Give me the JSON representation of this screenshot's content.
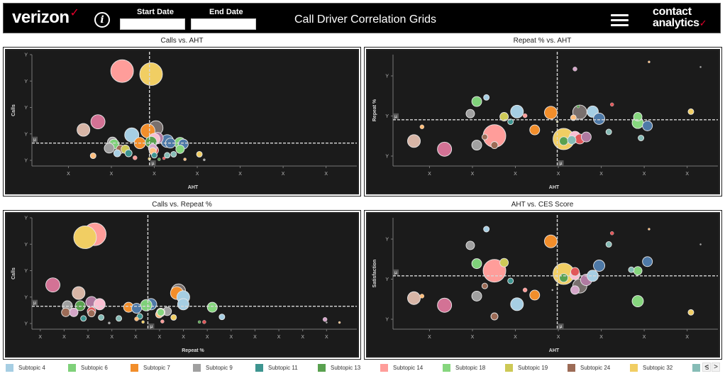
{
  "header": {
    "brand": "verizon",
    "brand_mark": "✓",
    "info_icon": "info-icon",
    "start_date_label": "Start Date",
    "start_date_value": "",
    "end_date_label": "End Date",
    "end_date_value": "",
    "title": "Call Driver Correlation Grids",
    "menu_icon": "hamburger-menu-icon",
    "logo_line1": "contact",
    "logo_line2": "analytics",
    "logo_mark": "✓"
  },
  "legend": {
    "items": [
      {
        "label": "Subtopic 4",
        "color": "#a6cee3"
      },
      {
        "label": "Subtopic 6",
        "color": "#7fd17a"
      },
      {
        "label": "Subtopic 7",
        "color": "#f28e2b"
      },
      {
        "label": "Subtopic 9",
        "color": "#a0a0a0"
      },
      {
        "label": "Subtopic 11",
        "color": "#3e9590"
      },
      {
        "label": "Subtopic 13",
        "color": "#59a14f"
      },
      {
        "label": "Subtopic 14",
        "color": "#ff9d9a"
      },
      {
        "label": "Subtopic 18",
        "color": "#86d67e"
      },
      {
        "label": "Subtopic 19",
        "color": "#cdc956"
      },
      {
        "label": "Subtopic 24",
        "color": "#9c6b56"
      },
      {
        "label": "Subtopic 32",
        "color": "#f1ce63"
      },
      {
        "label": "S",
        "color": "#86bcb6"
      }
    ],
    "prev_label": "<",
    "next_label": ">"
  },
  "palette": {
    "lblue": "#a6cee3",
    "green": "#7fd17a",
    "orange": "#f28e2b",
    "gray": "#a0a0a0",
    "teal": "#3e9590",
    "dgreen": "#59a14f",
    "pink": "#ff9d9a",
    "lgreen": "#86d67e",
    "olive": "#cdc956",
    "brown": "#9c6b56",
    "yellow": "#f1ce63",
    "lteal": "#86bcb6",
    "magenta": "#d37295",
    "tan": "#d7b5a6",
    "dgray": "#79706e",
    "blue": "#4e79a7",
    "lpink": "#fabfd2",
    "purple": "#b07aa1",
    "red": "#e15759",
    "peach": "#ffbe7d",
    "lilac": "#d4a6c8"
  },
  "chart_data": [
    {
      "type": "scatter",
      "title": "Calls vs. AHT",
      "xlabel": "AHT",
      "ylabel": "Calls",
      "x_tick_labels": [
        "X",
        "X",
        "X",
        "X",
        "X",
        "X",
        "X"
      ],
      "y_tick_labels": [
        "Y",
        "Y",
        "Y",
        "Y",
        "Y"
      ],
      "xlim": [
        0,
        1
      ],
      "ylim": [
        0,
        1
      ],
      "mean_x": 0.365,
      "mean_y": 0.17,
      "mean_marker": "μ",
      "points": [
        {
          "x": 0.28,
          "y": 0.88,
          "s": 16,
          "c": "pink"
        },
        {
          "x": 0.37,
          "y": 0.85,
          "s": 16,
          "c": "yellow"
        },
        {
          "x": 0.205,
          "y": 0.38,
          "s": 10,
          "c": "magenta"
        },
        {
          "x": 0.16,
          "y": 0.3,
          "s": 9,
          "c": "tan"
        },
        {
          "x": 0.385,
          "y": 0.32,
          "s": 10,
          "c": "dgray"
        },
        {
          "x": 0.36,
          "y": 0.29,
          "s": 10,
          "c": "orange"
        },
        {
          "x": 0.31,
          "y": 0.25,
          "s": 10,
          "c": "lblue"
        },
        {
          "x": 0.39,
          "y": 0.22,
          "s": 8,
          "c": "purple"
        },
        {
          "x": 0.38,
          "y": 0.21,
          "s": 8,
          "c": "lpink"
        },
        {
          "x": 0.42,
          "y": 0.19,
          "s": 9,
          "c": "blue"
        },
        {
          "x": 0.43,
          "y": 0.17,
          "s": 7,
          "c": "blue"
        },
        {
          "x": 0.37,
          "y": 0.18,
          "s": 8,
          "c": "dgreen"
        },
        {
          "x": 0.335,
          "y": 0.17,
          "s": 8,
          "c": "orange"
        },
        {
          "x": 0.25,
          "y": 0.18,
          "s": 7,
          "c": "gray"
        },
        {
          "x": 0.255,
          "y": 0.16,
          "s": 7,
          "c": "green"
        },
        {
          "x": 0.24,
          "y": 0.12,
          "s": 7,
          "c": "gray"
        },
        {
          "x": 0.275,
          "y": 0.11,
          "s": 6,
          "c": "brown"
        },
        {
          "x": 0.29,
          "y": 0.11,
          "s": 6,
          "c": "olive"
        },
        {
          "x": 0.265,
          "y": 0.07,
          "s": 5,
          "c": "lblue"
        },
        {
          "x": 0.3,
          "y": 0.07,
          "s": 5,
          "c": "teal"
        },
        {
          "x": 0.38,
          "y": 0.1,
          "s": 6,
          "c": "red"
        },
        {
          "x": 0.375,
          "y": 0.12,
          "s": 6,
          "c": "lilac"
        },
        {
          "x": 0.375,
          "y": 0.09,
          "s": 5,
          "c": "peach"
        },
        {
          "x": 0.38,
          "y": 0.05,
          "s": 4,
          "c": "teal"
        },
        {
          "x": 0.46,
          "y": 0.17,
          "s": 8,
          "c": "green"
        },
        {
          "x": 0.47,
          "y": 0.16,
          "s": 7,
          "c": "blue"
        },
        {
          "x": 0.46,
          "y": 0.11,
          "s": 6,
          "c": "lgreen"
        },
        {
          "x": 0.44,
          "y": 0.06,
          "s": 4,
          "c": "lteal"
        },
        {
          "x": 0.42,
          "y": 0.05,
          "s": 4,
          "c": "lteal"
        },
        {
          "x": 0.19,
          "y": 0.045,
          "s": 4,
          "c": "peach"
        },
        {
          "x": 0.32,
          "y": 0.025,
          "s": 3,
          "c": "pink"
        },
        {
          "x": 0.52,
          "y": 0.06,
          "s": 4,
          "c": "yellow"
        },
        {
          "x": 0.41,
          "y": 0.02,
          "s": 2,
          "c": "red"
        },
        {
          "x": 0.365,
          "y": 0.015,
          "s": 2,
          "c": "yellow"
        },
        {
          "x": 0.395,
          "y": 0.01,
          "s": 2,
          "c": "dgreen"
        },
        {
          "x": 0.475,
          "y": 0.01,
          "s": 2,
          "c": "peach"
        },
        {
          "x": 0.535,
          "y": 0.005,
          "s": 1.5,
          "c": "gray"
        }
      ]
    },
    {
      "type": "scatter",
      "title": "Repeat % vs. AHT",
      "xlabel": "AHT",
      "ylabel": "Repeat %",
      "x_tick_labels": [
        "X",
        "X",
        "X",
        "X",
        "X",
        "X",
        "X"
      ],
      "y_tick_labels": [
        "Y",
        "Y",
        "Y"
      ],
      "xlim": [
        0,
        1
      ],
      "ylim": [
        0,
        1
      ],
      "mean_x": 0.51,
      "mean_y": 0.4,
      "mean_marker": "μ",
      "points": [
        {
          "x": 0.315,
          "y": 0.24,
          "s": 16,
          "c": "pink"
        },
        {
          "x": 0.53,
          "y": 0.21,
          "s": 15,
          "c": "yellow"
        },
        {
          "x": 0.53,
          "y": 0.19,
          "s": 6,
          "c": "dgreen"
        },
        {
          "x": 0.16,
          "y": 0.11,
          "s": 10,
          "c": "magenta"
        },
        {
          "x": 0.065,
          "y": 0.19,
          "s": 9,
          "c": "tan"
        },
        {
          "x": 0.26,
          "y": 0.15,
          "s": 7,
          "c": "gray"
        },
        {
          "x": 0.315,
          "y": 0.15,
          "s": 5,
          "c": "brown"
        },
        {
          "x": 0.285,
          "y": 0.23,
          "s": 4,
          "c": "brown"
        },
        {
          "x": 0.58,
          "y": 0.475,
          "s": 10,
          "c": "dgray"
        },
        {
          "x": 0.49,
          "y": 0.47,
          "s": 9,
          "c": "orange"
        },
        {
          "x": 0.565,
          "y": 0.23,
          "s": 8,
          "c": "lpink"
        },
        {
          "x": 0.58,
          "y": 0.21,
          "s": 7,
          "c": "red"
        },
        {
          "x": 0.6,
          "y": 0.23,
          "s": 7,
          "c": "purple"
        },
        {
          "x": 0.555,
          "y": 0.2,
          "s": 6,
          "c": "lteal"
        },
        {
          "x": 0.385,
          "y": 0.48,
          "s": 9,
          "c": "lblue"
        },
        {
          "x": 0.62,
          "y": 0.48,
          "s": 8,
          "c": "lblue"
        },
        {
          "x": 0.64,
          "y": 0.41,
          "s": 8,
          "c": "blue"
        },
        {
          "x": 0.79,
          "y": 0.34,
          "s": 7,
          "c": "blue"
        },
        {
          "x": 0.76,
          "y": 0.43,
          "s": 6,
          "c": "lgreen"
        },
        {
          "x": 0.76,
          "y": 0.37,
          "s": 8,
          "c": "lgreen"
        },
        {
          "x": 0.26,
          "y": 0.58,
          "s": 7,
          "c": "green"
        },
        {
          "x": 0.29,
          "y": 0.62,
          "s": 4,
          "c": "lblue"
        },
        {
          "x": 0.24,
          "y": 0.46,
          "s": 6,
          "c": "gray"
        },
        {
          "x": 0.345,
          "y": 0.43,
          "s": 6,
          "c": "olive"
        },
        {
          "x": 0.365,
          "y": 0.38,
          "s": 4,
          "c": "teal"
        },
        {
          "x": 0.44,
          "y": 0.3,
          "s": 7,
          "c": "orange"
        },
        {
          "x": 0.09,
          "y": 0.33,
          "s": 3,
          "c": "peach"
        },
        {
          "x": 0.41,
          "y": 0.44,
          "s": 3,
          "c": "pink"
        },
        {
          "x": 0.56,
          "y": 0.42,
          "s": 4,
          "c": "peach"
        },
        {
          "x": 0.67,
          "y": 0.28,
          "s": 4,
          "c": "lteal"
        },
        {
          "x": 0.77,
          "y": 0.22,
          "s": 4,
          "c": "lteal"
        },
        {
          "x": 0.925,
          "y": 0.48,
          "s": 4,
          "c": "yellow"
        },
        {
          "x": 0.68,
          "y": 0.55,
          "s": 2.5,
          "c": "red"
        },
        {
          "x": 0.575,
          "y": 0.53,
          "s": 2,
          "c": "dgreen"
        },
        {
          "x": 0.565,
          "y": 0.9,
          "s": 3,
          "c": "lilac"
        },
        {
          "x": 0.795,
          "y": 0.97,
          "s": 1.5,
          "c": "peach"
        },
        {
          "x": 0.955,
          "y": 0.92,
          "s": 1,
          "c": "gray"
        },
        {
          "x": 0.51,
          "y": 0.38,
          "s": 1.5,
          "c": "olive"
        },
        {
          "x": 0.495,
          "y": 0.28,
          "s": 1,
          "c": "gray"
        }
      ]
    },
    {
      "type": "scatter",
      "title": "Calls vs. Repeat %",
      "xlabel": "Repeat %",
      "ylabel": "Calls",
      "x_tick_labels": [
        "X",
        "X",
        "X",
        "X",
        "X",
        "X",
        "X",
        "X",
        "X",
        "X",
        "X",
        "X",
        "X"
      ],
      "y_tick_labels": [
        "Y",
        "Y",
        "Y",
        "Y",
        "Y"
      ],
      "xlim": [
        0,
        1
      ],
      "ylim": [
        0,
        1
      ],
      "mean_x": 0.36,
      "mean_y": 0.17,
      "mean_marker": "μ",
      "points": [
        {
          "x": 0.195,
          "y": 0.88,
          "s": 16,
          "c": "pink"
        },
        {
          "x": 0.165,
          "y": 0.85,
          "s": 16,
          "c": "yellow"
        },
        {
          "x": 0.065,
          "y": 0.38,
          "s": 10,
          "c": "magenta"
        },
        {
          "x": 0.145,
          "y": 0.3,
          "s": 9,
          "c": "tan"
        },
        {
          "x": 0.45,
          "y": 0.3,
          "s": 9,
          "c": "orange"
        },
        {
          "x": 0.455,
          "y": 0.32,
          "s": 10,
          "c": "dgray"
        },
        {
          "x": 0.47,
          "y": 0.26,
          "s": 9,
          "c": "lblue"
        },
        {
          "x": 0.47,
          "y": 0.19,
          "s": 8,
          "c": "lblue"
        },
        {
          "x": 0.185,
          "y": 0.21,
          "s": 8,
          "c": "purple"
        },
        {
          "x": 0.21,
          "y": 0.19,
          "s": 8,
          "c": "lpink"
        },
        {
          "x": 0.11,
          "y": 0.175,
          "s": 7,
          "c": "gray"
        },
        {
          "x": 0.15,
          "y": 0.175,
          "s": 7,
          "c": "dgreen"
        },
        {
          "x": 0.105,
          "y": 0.11,
          "s": 6,
          "c": "brown"
        },
        {
          "x": 0.13,
          "y": 0.11,
          "s": 6,
          "c": "lilac"
        },
        {
          "x": 0.185,
          "y": 0.12,
          "s": 6,
          "c": "red"
        },
        {
          "x": 0.185,
          "y": 0.1,
          "s": 5,
          "c": "brown"
        },
        {
          "x": 0.3,
          "y": 0.16,
          "s": 7,
          "c": "orange"
        },
        {
          "x": 0.325,
          "y": 0.15,
          "s": 7,
          "c": "blue"
        },
        {
          "x": 0.37,
          "y": 0.19,
          "s": 8,
          "c": "blue"
        },
        {
          "x": 0.355,
          "y": 0.18,
          "s": 8,
          "c": "green"
        },
        {
          "x": 0.42,
          "y": 0.12,
          "s": 6,
          "c": "gray"
        },
        {
          "x": 0.4,
          "y": 0.11,
          "s": 6,
          "c": "olive"
        },
        {
          "x": 0.395,
          "y": 0.09,
          "s": 5,
          "c": "peach"
        },
        {
          "x": 0.4,
          "y": 0.11,
          "s": 5,
          "c": "lgreen"
        },
        {
          "x": 0.56,
          "y": 0.16,
          "s": 7,
          "c": "lgreen"
        },
        {
          "x": 0.335,
          "y": 0.07,
          "s": 4,
          "c": "teal"
        },
        {
          "x": 0.325,
          "y": 0.045,
          "s": 3,
          "c": "peach"
        },
        {
          "x": 0.16,
          "y": 0.05,
          "s": 4,
          "c": "teal"
        },
        {
          "x": 0.215,
          "y": 0.06,
          "s": 4,
          "c": "lteal"
        },
        {
          "x": 0.27,
          "y": 0.05,
          "s": 4,
          "c": "lteal"
        },
        {
          "x": 0.44,
          "y": 0.06,
          "s": 4,
          "c": "yellow"
        },
        {
          "x": 0.59,
          "y": 0.065,
          "s": 4,
          "c": "lblue"
        },
        {
          "x": 0.405,
          "y": 0.02,
          "s": 2.5,
          "c": "pink"
        },
        {
          "x": 0.345,
          "y": 0.015,
          "s": 2,
          "c": "yellow"
        },
        {
          "x": 0.24,
          "y": 0.005,
          "s": 1.5,
          "c": "gray"
        },
        {
          "x": 0.52,
          "y": 0.015,
          "s": 2,
          "c": "dgreen"
        },
        {
          "x": 0.535,
          "y": 0.015,
          "s": 2.5,
          "c": "red"
        },
        {
          "x": 0.91,
          "y": 0.04,
          "s": 3,
          "c": "lilac"
        },
        {
          "x": 0.955,
          "y": 0.01,
          "s": 1.5,
          "c": "peach"
        },
        {
          "x": 0.915,
          "y": 0.01,
          "s": 1,
          "c": "gray"
        }
      ]
    },
    {
      "type": "scatter",
      "title": "AHT vs. CES Score",
      "xlabel": "AHT",
      "ylabel": "Satisfaction",
      "x_tick_labels": [
        "X",
        "X",
        "X",
        "X",
        "X",
        "X",
        "X"
      ],
      "y_tick_labels": [
        "Y",
        "Y",
        "Y"
      ],
      "xlim": [
        0,
        1
      ],
      "ylim": [
        0,
        1
      ],
      "mean_x": 0.51,
      "mean_y": 0.47,
      "mean_marker": "μ",
      "points": [
        {
          "x": 0.315,
          "y": 0.52,
          "s": 16,
          "c": "pink"
        },
        {
          "x": 0.53,
          "y": 0.49,
          "s": 15,
          "c": "yellow"
        },
        {
          "x": 0.53,
          "y": 0.45,
          "s": 6,
          "c": "dgreen"
        },
        {
          "x": 0.16,
          "y": 0.18,
          "s": 10,
          "c": "magenta"
        },
        {
          "x": 0.065,
          "y": 0.25,
          "s": 9,
          "c": "tan"
        },
        {
          "x": 0.09,
          "y": 0.27,
          "s": 3,
          "c": "peach"
        },
        {
          "x": 0.26,
          "y": 0.27,
          "s": 7,
          "c": "gray"
        },
        {
          "x": 0.385,
          "y": 0.19,
          "s": 9,
          "c": "lblue"
        },
        {
          "x": 0.315,
          "y": 0.07,
          "s": 5,
          "c": "brown"
        },
        {
          "x": 0.285,
          "y": 0.37,
          "s": 4,
          "c": "brown"
        },
        {
          "x": 0.44,
          "y": 0.28,
          "s": 7,
          "c": "orange"
        },
        {
          "x": 0.49,
          "y": 0.81,
          "s": 9,
          "c": "orange"
        },
        {
          "x": 0.24,
          "y": 0.77,
          "s": 6,
          "c": "gray"
        },
        {
          "x": 0.26,
          "y": 0.59,
          "s": 7,
          "c": "green"
        },
        {
          "x": 0.345,
          "y": 0.6,
          "s": 6,
          "c": "olive"
        },
        {
          "x": 0.29,
          "y": 0.93,
          "s": 4,
          "c": "lblue"
        },
        {
          "x": 0.365,
          "y": 0.42,
          "s": 4,
          "c": "teal"
        },
        {
          "x": 0.41,
          "y": 0.33,
          "s": 3,
          "c": "pink"
        },
        {
          "x": 0.58,
          "y": 0.37,
          "s": 10,
          "c": "dgray"
        },
        {
          "x": 0.565,
          "y": 0.33,
          "s": 6,
          "c": "lilac"
        },
        {
          "x": 0.6,
          "y": 0.43,
          "s": 8,
          "c": "purple"
        },
        {
          "x": 0.565,
          "y": 0.48,
          "s": 7,
          "c": "lpink"
        },
        {
          "x": 0.565,
          "y": 0.51,
          "s": 6,
          "c": "red"
        },
        {
          "x": 0.62,
          "y": 0.47,
          "s": 8,
          "c": "lblue"
        },
        {
          "x": 0.64,
          "y": 0.57,
          "s": 8,
          "c": "blue"
        },
        {
          "x": 0.79,
          "y": 0.61,
          "s": 7,
          "c": "blue"
        },
        {
          "x": 0.76,
          "y": 0.52,
          "s": 6,
          "c": "lgreen"
        },
        {
          "x": 0.74,
          "y": 0.53,
          "s": 4,
          "c": "lteal"
        },
        {
          "x": 0.76,
          "y": 0.22,
          "s": 8,
          "c": "lgreen"
        },
        {
          "x": 0.67,
          "y": 0.78,
          "s": 4,
          "c": "lteal"
        },
        {
          "x": 0.68,
          "y": 0.89,
          "s": 2.5,
          "c": "red"
        },
        {
          "x": 0.925,
          "y": 0.11,
          "s": 4,
          "c": "yellow"
        },
        {
          "x": 0.795,
          "y": 0.93,
          "s": 1.5,
          "c": "peach"
        },
        {
          "x": 0.955,
          "y": 0.78,
          "s": 1,
          "c": "gray"
        },
        {
          "x": 0.51,
          "y": 0.38,
          "s": 1.5,
          "c": "olive"
        },
        {
          "x": 0.495,
          "y": 0.33,
          "s": 1,
          "c": "gray"
        }
      ]
    }
  ]
}
